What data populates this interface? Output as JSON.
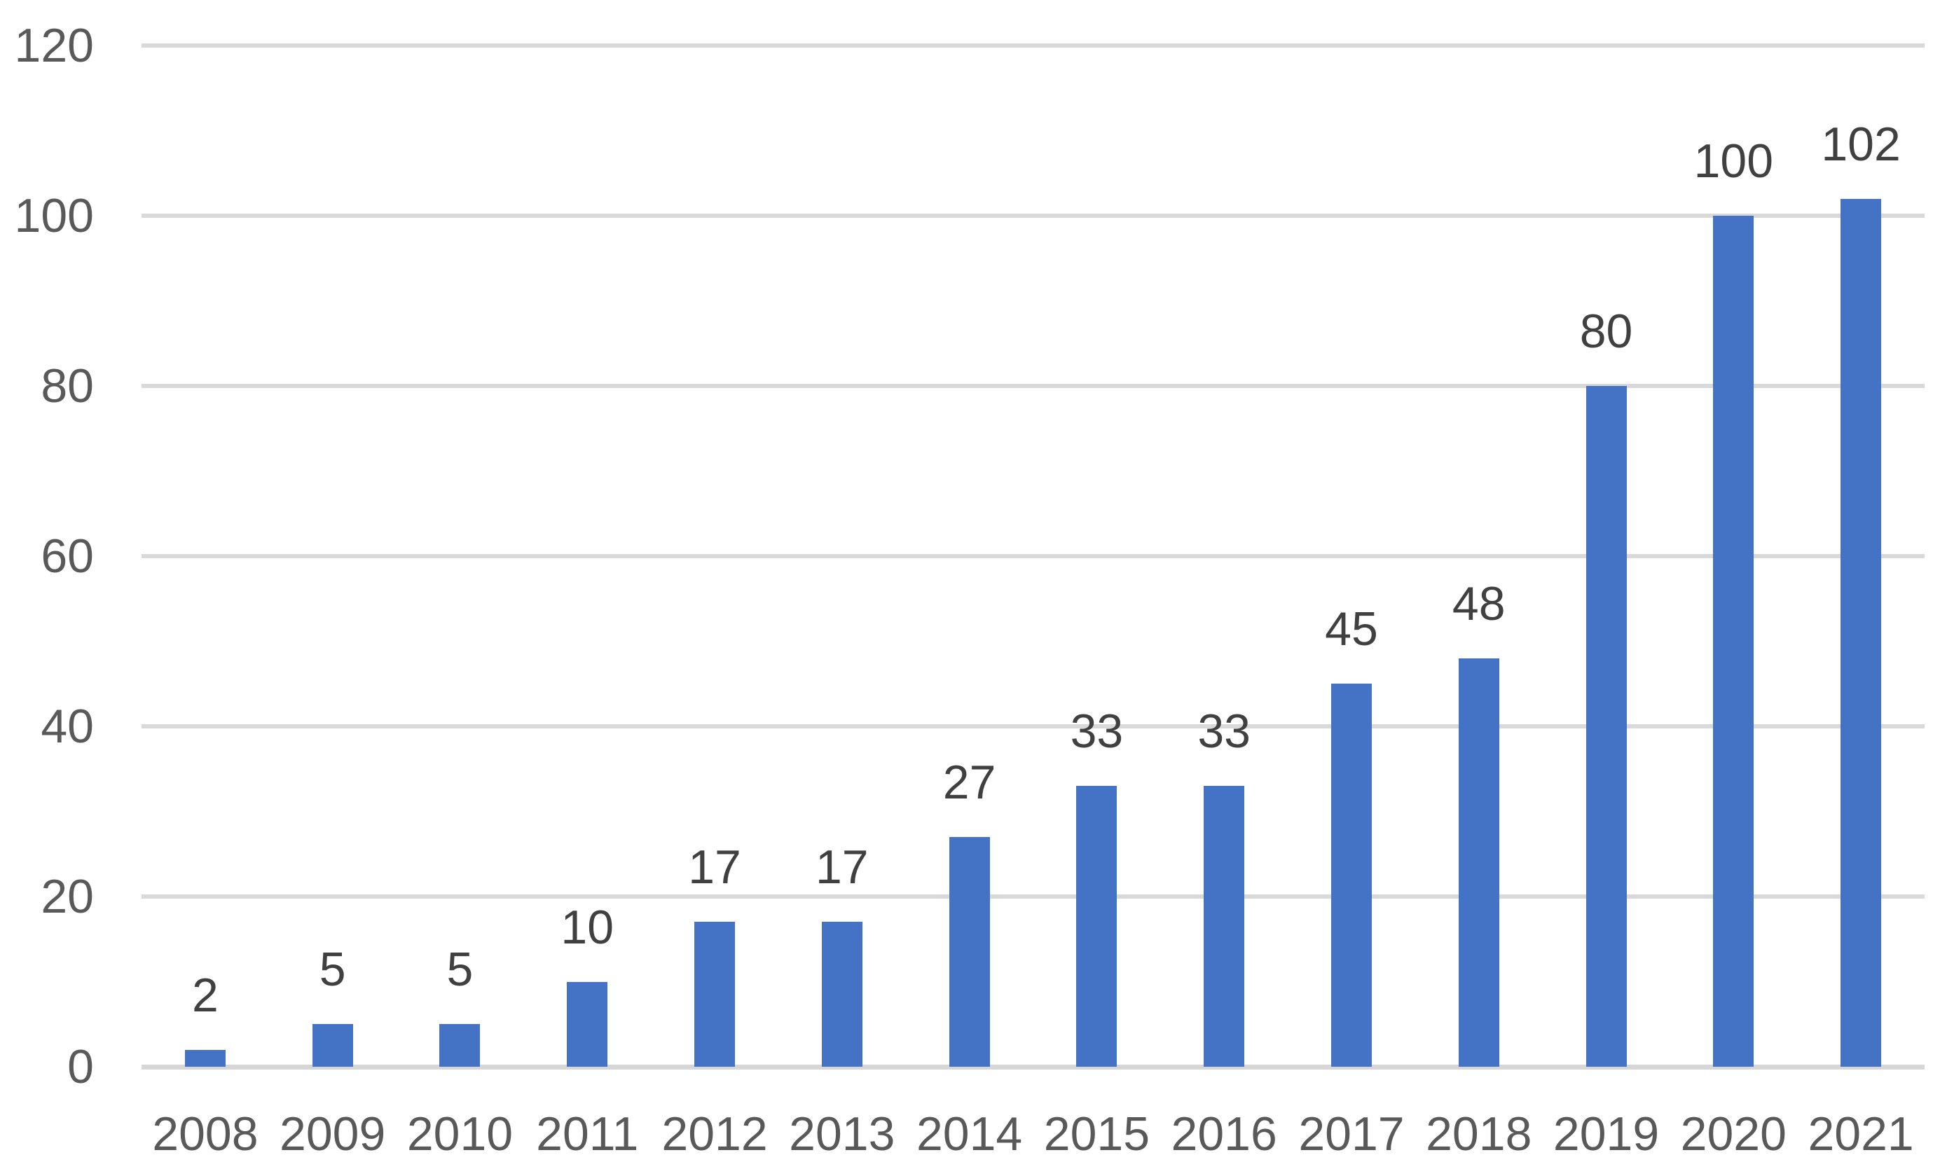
{
  "chart_data": {
    "type": "bar",
    "title": "",
    "xlabel": "",
    "ylabel": "",
    "categories": [
      "2008",
      "2009",
      "2010",
      "2011",
      "2012",
      "2013",
      "2014",
      "2015",
      "2016",
      "2017",
      "2018",
      "2019",
      "2020",
      "2021"
    ],
    "values": [
      2,
      5,
      5,
      10,
      17,
      17,
      27,
      33,
      33,
      45,
      48,
      80,
      100,
      102
    ],
    "data_labels": [
      "2",
      "5",
      "5",
      "10",
      "17",
      "17",
      "27",
      "33",
      "33",
      "45",
      "48",
      "80",
      "100",
      "102"
    ],
    "yticks": [
      "0",
      "20",
      "40",
      "60",
      "80",
      "100",
      "120"
    ],
    "ytick_values": [
      0,
      20,
      40,
      60,
      80,
      100,
      120
    ],
    "ylim": [
      0,
      120
    ],
    "grid": true,
    "legend": false,
    "data_labels_visible": true,
    "colors": {
      "bar": "#4472C4",
      "gridline": "#D9D9D9",
      "axis_line": "#D6D6D6",
      "tick_label": "#595959",
      "data_label": "#404040",
      "background": "#FFFFFF"
    }
  }
}
